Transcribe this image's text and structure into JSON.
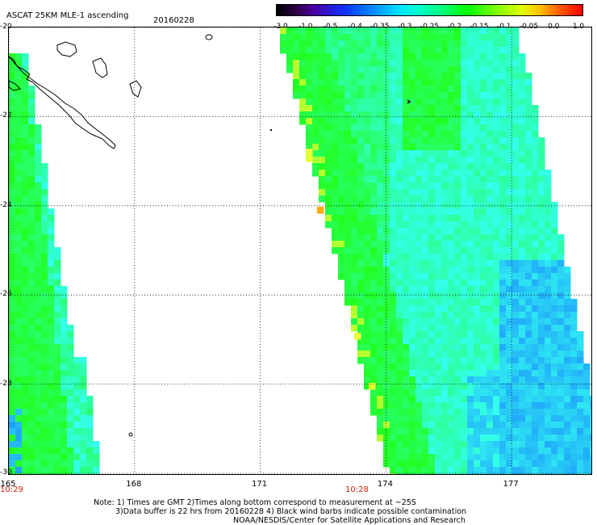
{
  "header": {
    "title": "ASCAT 25KM MLE-1 ascending",
    "date": "20160228"
  },
  "colorbar": {
    "tick_labels": [
      "-3.0",
      "-1.0",
      "-0.5",
      "-0.4",
      "-0.35",
      "-0.3",
      "-0.25",
      "-0.2",
      "-0.15",
      "-0.1",
      "-0.05",
      "0.0",
      "1.0"
    ],
    "colors": [
      "#000000",
      "#4b00a0",
      "#1030ff",
      "#0090ff",
      "#00e0ff",
      "#00ffd0",
      "#00ff80",
      "#00ff00",
      "#80ff00",
      "#e0ff00",
      "#ffc000",
      "#ff6000",
      "#ff0000"
    ]
  },
  "map": {
    "y_labels": [
      "-20",
      "-22",
      "-24",
      "-26",
      "-28",
      "-30"
    ],
    "x_labels": [
      "165",
      "168",
      "171",
      "174",
      "177"
    ],
    "swath_times": [
      "10:29",
      "10:28"
    ],
    "lat_range": [
      -30,
      -20
    ],
    "lon_range": [
      165,
      179
    ],
    "data_colors": {
      "green": "#22ff22",
      "cyan": "#33ffee",
      "blue": "#1a88ff",
      "yellow": "#e6ff33",
      "orange": "#ffaa00"
    }
  },
  "notes": {
    "line1": "Note: 1) Times are GMT 2)Times along bottom correspond to measurement at ~25S",
    "line2": "3)Data buffer is 22 hrs from 20160228 4) Black wind barbs indicate possible contamination",
    "line3": "NOAA/NESDIS/Center for Satellite Applications and Research"
  }
}
